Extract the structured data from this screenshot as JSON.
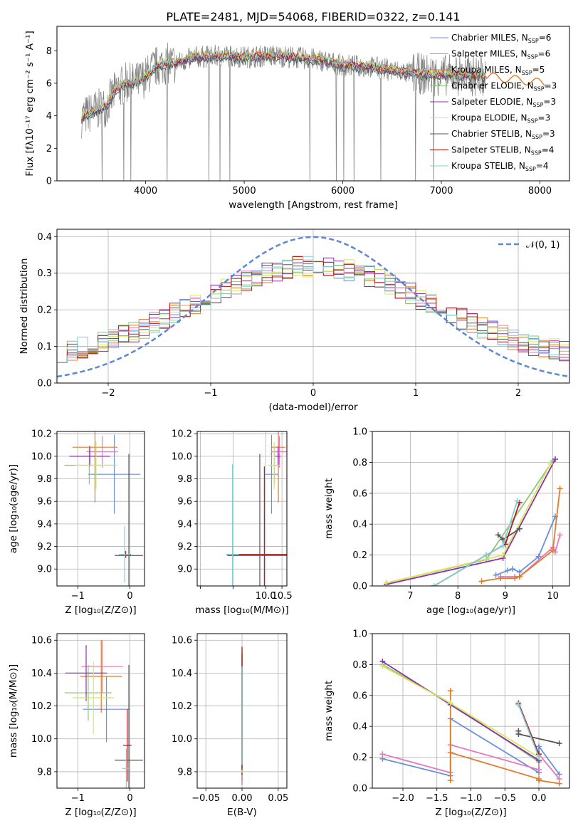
{
  "title": "PLATE=2481, MJD=54068, FIBERID=0322, z=0.141",
  "colors": {
    "chabrier_miles": "#6b8fd9",
    "salpeter_miles": "#e879b9",
    "kroupa_miles": "#e07b2a",
    "chabrier_elodie": "#8cc67a",
    "salpeter_elodie": "#8e2fa8",
    "kroupa_elodie": "#d7e85a",
    "chabrier_stelib": "#555555",
    "salpeter_stelib": "#b81a1a",
    "kroupa_stelib": "#7fcfd6",
    "data": "#7f7f7f",
    "normal": "#5b87d6"
  },
  "chart_data": [
    {
      "id": "spectrum",
      "type": "line",
      "xlabel": "wavelength [Angstrom, rest frame]",
      "ylabel": "Flux [fλ10⁻¹⁷ erg cm⁻² s⁻¹ A⁻¹]",
      "xlim": [
        3100,
        8300
      ],
      "ylim": [
        0,
        9.5
      ],
      "xticks": [
        4000,
        5000,
        6000,
        7000,
        8000
      ],
      "yticks": [
        0,
        2,
        4,
        6,
        8
      ],
      "legend_position": "top-right",
      "legend": [
        "Chabrier MILES, N_SSP=6",
        "Salpeter MILES, N_SSP=6",
        "Kroupa MILES, N_SSP=5",
        "Chabrier ELODIE, N_SSP=3",
        "Salpeter ELODIE, N_SSP=3",
        "Kroupa ELODIE, N_SSP=3",
        "Chabrier STELIB, N_SSP=3",
        "Salpeter STELIB, N_SSP=4",
        "Kroupa STELIB, N_SSP=4"
      ],
      "continuum": [
        [
          3350,
          3.9
        ],
        [
          3450,
          4.2
        ],
        [
          3600,
          4.6
        ],
        [
          3700,
          5.6
        ],
        [
          3800,
          6.0
        ],
        [
          3900,
          6.0
        ],
        [
          4000,
          6.4
        ],
        [
          4100,
          7.0
        ],
        [
          4200,
          7.2
        ],
        [
          4300,
          7.2
        ],
        [
          4500,
          7.6
        ],
        [
          4800,
          7.7
        ],
        [
          5000,
          7.6
        ],
        [
          5300,
          7.7
        ],
        [
          5500,
          7.6
        ],
        [
          5800,
          7.4
        ],
        [
          6000,
          7.1
        ],
        [
          6300,
          7.0
        ],
        [
          6600,
          6.7
        ],
        [
          6900,
          6.5
        ],
        [
          7200,
          6.5
        ],
        [
          7500,
          6.4
        ],
        [
          7800,
          6.2
        ],
        [
          8050,
          6.0
        ]
      ]
    },
    {
      "id": "residuals",
      "type": "histogram",
      "xlabel": "(data-model)/error",
      "ylabel": "Normed distribution",
      "xlim": [
        -2.5,
        2.5
      ],
      "ylim": [
        0,
        0.42
      ],
      "xticks": [
        -2,
        -1,
        0,
        1,
        2
      ],
      "yticks": [
        0.0,
        0.1,
        0.2,
        0.3,
        0.4
      ],
      "grid": true,
      "legend": [
        "𝒩(0, 1)"
      ],
      "legend_position": "top-right"
    },
    {
      "id": "age_vs_Z",
      "type": "scatter",
      "xlabel": "Z [log₁₀(Z/Z⊙)]",
      "ylabel": "age  [log₁₀(age/yr)]",
      "xlim": [
        -1.4,
        0.28
      ],
      "ylim": [
        8.85,
        10.22
      ],
      "xticks": [
        -1,
        0
      ],
      "yticks": [
        9.0,
        9.2,
        9.4,
        9.6,
        9.8,
        10.0,
        10.2
      ],
      "points": [
        {
          "x": -0.3,
          "y": 9.84,
          "xerr": 0.5,
          "yerr": 0.35
        },
        {
          "x": -0.53,
          "y": 10.04,
          "xerr": 0.3,
          "yerr": 0.14
        },
        {
          "x": -0.67,
          "y": 10.08,
          "xerr": 0.43,
          "yerr": 0.49
        },
        {
          "x": -0.78,
          "y": 9.92,
          "xerr": 0.48,
          "yerr": 0.17
        },
        {
          "x": -0.77,
          "y": 10.0,
          "xerr": 0.39,
          "yerr": 0.09
        },
        {
          "x": -0.65,
          "y": 9.92,
          "xerr": 0.4,
          "yerr": 0.21
        },
        {
          "x": -0.02,
          "y": 9.12,
          "xerr": 0.27,
          "yerr": 0.9
        },
        {
          "x": -0.08,
          "y": 9.13,
          "xerr": 0.1,
          "yerr": 0.03
        },
        {
          "x": -0.1,
          "y": 9.13,
          "xerr": 0.11,
          "yerr": 0.25
        }
      ]
    },
    {
      "id": "age_vs_mass",
      "type": "scatter",
      "xlabel": "mass [log₁₀(M/M⊙)]",
      "ylabel": "",
      "xlim": [
        7.9,
        10.65
      ],
      "ylim": [
        8.85,
        10.22
      ],
      "xticks": [
        8.0,
        9.0,
        10.0,
        10.5
      ],
      "xticklabels": [
        "",
        "",
        "10.0",
        "10.5"
      ],
      "yticks": [
        9.0,
        9.2,
        9.4,
        9.6,
        9.8,
        10.0,
        10.2
      ],
      "points": [
        {
          "x": 10.18,
          "y": 9.84,
          "xerr": 0.2,
          "yerr": 0.35
        },
        {
          "x": 10.42,
          "y": 10.04,
          "xerr": 0.26,
          "yerr": 0.14
        },
        {
          "x": 10.39,
          "y": 10.08,
          "xerr": 0.22,
          "yerr": 0.49
        },
        {
          "x": 10.27,
          "y": 9.92,
          "xerr": 0.17,
          "yerr": 0.17
        },
        {
          "x": 10.38,
          "y": 10.0,
          "xerr": 0.08,
          "yerr": 0.09
        },
        {
          "x": 10.26,
          "y": 9.92,
          "xerr": 0.2,
          "yerr": 0.21
        },
        {
          "x": 9.82,
          "y": 9.12,
          "xerr": 1.0,
          "yerr": 0.9
        },
        {
          "x": 9.96,
          "y": 9.13,
          "xerr": 1.15,
          "yerr": 0.78
        },
        {
          "x": 8.98,
          "y": 9.13,
          "xerr": 0.2,
          "yerr": 0.8
        }
      ]
    },
    {
      "id": "weight_vs_age",
      "type": "line",
      "xlabel": "age  [log₁₀(age/yr)]",
      "ylabel": "mass weight",
      "xlim": [
        6.2,
        10.35
      ],
      "ylim": [
        0.0,
        1.0
      ],
      "xticks": [
        7,
        8,
        9,
        10
      ],
      "yticks": [
        0.0,
        0.2,
        0.4,
        0.6,
        0.8,
        1.0
      ],
      "grid": true,
      "series": [
        {
          "x": [
            8.8,
            9.05,
            9.15,
            9.3,
            9.7,
            10.05
          ],
          "y": [
            0.07,
            0.1,
            0.11,
            0.09,
            0.19,
            0.45
          ]
        },
        {
          "x": [
            8.9,
            9.2,
            9.3,
            10.0,
            10.05,
            10.15
          ],
          "y": [
            0.06,
            0.06,
            0.06,
            0.25,
            0.22,
            0.33
          ]
        },
        {
          "x": [
            8.5,
            8.9,
            9.2,
            9.3,
            10.0,
            10.15
          ],
          "y": [
            0.03,
            0.05,
            0.05,
            0.06,
            0.23,
            0.63
          ]
        },
        {
          "x": [
            6.5,
            8.6,
            10.0
          ],
          "y": [
            0.02,
            0.17,
            0.81
          ]
        },
        {
          "x": [
            6.5,
            8.95,
            10.05
          ],
          "y": [
            0.01,
            0.18,
            0.82
          ]
        },
        {
          "x": [
            6.5,
            8.95,
            9.95
          ],
          "y": [
            0.02,
            0.2,
            0.79
          ]
        },
        {
          "x": [
            8.85,
            8.95,
            9.3
          ],
          "y": [
            0.33,
            0.3,
            0.37
          ]
        },
        {
          "x": [
            7.5,
            8.6,
            9.0,
            9.3
          ],
          "y": [
            0.0,
            0.2,
            0.27,
            0.54
          ]
        },
        {
          "x": [
            7.5,
            8.6,
            8.95,
            9.25
          ],
          "y": [
            0.0,
            0.2,
            0.26,
            0.55
          ]
        }
      ]
    },
    {
      "id": "mass_vs_Z",
      "type": "scatter",
      "xlabel": "Z [log₁₀(Z/Z⊙)]",
      "ylabel": "mass [log₁₀(M/M⊙)]",
      "xlim": [
        -1.4,
        0.28
      ],
      "ylim": [
        9.7,
        10.64
      ],
      "xticks": [
        -1,
        0
      ],
      "yticks": [
        9.8,
        10.0,
        10.2,
        10.4,
        10.6
      ],
      "points": [
        {
          "x": -0.45,
          "y": 10.18,
          "xerr": 0.45,
          "yerr": 0.2
        },
        {
          "x": -0.53,
          "y": 10.44,
          "xerr": 0.4,
          "yerr": 0.16
        },
        {
          "x": -0.55,
          "y": 10.38,
          "xerr": 0.4,
          "yerr": 0.22
        },
        {
          "x": -0.8,
          "y": 10.28,
          "xerr": 0.45,
          "yerr": 0.17
        },
        {
          "x": -0.84,
          "y": 10.4,
          "xerr": 0.4,
          "yerr": 0.17
        },
        {
          "x": -0.7,
          "y": 10.25,
          "xerr": 0.4,
          "yerr": 0.22
        },
        {
          "x": -0.02,
          "y": 9.87,
          "xerr": 0.27,
          "yerr": 0.58
        },
        {
          "x": -0.05,
          "y": 9.96,
          "xerr": 0.08,
          "yerr": 0.22
        },
        {
          "x": -0.07,
          "y": 9.82,
          "xerr": 0.08,
          "yerr": 0.12
        }
      ]
    },
    {
      "id": "mass_vs_ebv",
      "type": "scatter",
      "xlabel": "E(B-V)",
      "ylabel": "",
      "xlim": [
        -0.062,
        0.062
      ],
      "ylim": [
        9.7,
        10.64
      ],
      "xticks": [
        -0.05,
        0.0,
        0.05
      ],
      "xticklabels": [
        "−0.05",
        "0.00",
        "0.05"
      ],
      "yticks": [
        9.8,
        10.0,
        10.2,
        10.4,
        10.6
      ]
    },
    {
      "id": "weight_vs_Z",
      "type": "line",
      "xlabel": "Z [log₁₀(Z/Z⊙)]",
      "ylabel": "mass weight",
      "xlim": [
        -2.45,
        0.45
      ],
      "ylim": [
        0.0,
        1.0
      ],
      "xticks": [
        -2.0,
        -1.5,
        -1.0,
        -0.5,
        0.0
      ],
      "xticklabels": [
        "−2.0",
        "−1.5",
        "−1.0",
        "−0.5",
        "0.0"
      ],
      "yticks": [
        0.0,
        0.2,
        0.4,
        0.6,
        0.8,
        1.0
      ],
      "grid": true,
      "series": [
        {
          "x": [
            -2.3,
            -1.3,
            -1.3,
            0.0,
            0.0,
            0.3
          ],
          "y": [
            0.19,
            0.08,
            0.45,
            0.1,
            0.27,
            0.09
          ]
        },
        {
          "x": [
            -2.3,
            -1.3,
            -1.3,
            0.0,
            0.0,
            0.3
          ],
          "y": [
            0.22,
            0.1,
            0.28,
            0.12,
            0.22,
            0.06
          ]
        },
        {
          "x": [
            -1.3,
            -1.3,
            -1.3,
            0.0,
            0.0,
            0.3
          ],
          "y": [
            0.63,
            0.05,
            0.23,
            0.06,
            0.05,
            0.03
          ]
        },
        {
          "x": [
            -2.3,
            -1.3,
            0.0
          ],
          "y": [
            0.8,
            0.55,
            0.17
          ]
        },
        {
          "x": [
            -2.3,
            -1.3,
            0.0
          ],
          "y": [
            0.82,
            0.54,
            0.18
          ]
        },
        {
          "x": [
            -2.3,
            -1.3,
            0.0
          ],
          "y": [
            0.79,
            0.55,
            0.2
          ]
        },
        {
          "x": [
            -0.3,
            -0.3,
            0.3
          ],
          "y": [
            0.37,
            0.35,
            0.29
          ]
        },
        {
          "x": [
            -0.3,
            0.0
          ],
          "y": [
            0.55,
            0.22
          ]
        },
        {
          "x": [
            -0.3,
            0.0
          ],
          "y": [
            0.54,
            0.2
          ]
        }
      ]
    }
  ]
}
